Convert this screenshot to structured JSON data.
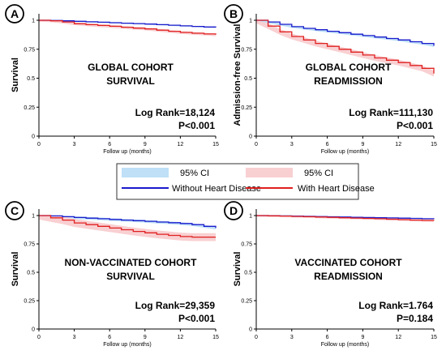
{
  "legend": {
    "ci_label_left": "95% CI",
    "ci_label_right": "95% CI",
    "line_label_without": "Without Heart Disease",
    "line_label_with": "With Heart Disease"
  },
  "colors": {
    "without_line": "#1a1acc",
    "without_ci": "#bfe0f7",
    "with_line": "#e02020",
    "with_ci": "#f9d0d2"
  },
  "chart_data": [
    {
      "type": "line",
      "panel_letter": "A",
      "annotation": [
        "GLOBAL COHORT",
        "SURVIVAL"
      ],
      "stat": [
        "Log Rank=18,124",
        "P<0.001"
      ],
      "ylabel": "Survival",
      "xlabel": "Follow up (months)",
      "xlim": [
        0,
        15
      ],
      "ylim": [
        0,
        1
      ],
      "x_ticks": [
        0,
        3,
        6,
        9,
        12,
        15
      ],
      "y_ticks": [
        0,
        0.25,
        0.5,
        0.75,
        1
      ],
      "y_tick_labels": [
        "0",
        "0.25",
        "0.5",
        "0.75",
        "1"
      ],
      "series": [
        {
          "name": "Without Heart Disease",
          "x": [
            0,
            1,
            2,
            3,
            4,
            5,
            6,
            7,
            8,
            9,
            10,
            11,
            12,
            13,
            14,
            15
          ],
          "y": [
            1.0,
            0.998,
            0.995,
            0.991,
            0.987,
            0.983,
            0.979,
            0.975,
            0.971,
            0.967,
            0.962,
            0.957,
            0.952,
            0.947,
            0.942,
            0.938
          ],
          "ci": 0.005
        },
        {
          "name": "With Heart Disease",
          "x": [
            0,
            1,
            2,
            3,
            4,
            5,
            6,
            7,
            8,
            9,
            10,
            11,
            12,
            13,
            14,
            15
          ],
          "y": [
            1.0,
            0.995,
            0.985,
            0.97,
            0.962,
            0.955,
            0.948,
            0.94,
            0.932,
            0.925,
            0.915,
            0.905,
            0.895,
            0.888,
            0.882,
            0.875
          ],
          "ci": 0.012
        }
      ]
    },
    {
      "type": "line",
      "panel_letter": "B",
      "annotation": [
        "GLOBAL COHORT",
        "READMISSION"
      ],
      "stat": [
        "Log Rank=111,130",
        "P<0.001"
      ],
      "ylabel": "Admission-free Survival",
      "xlabel": "Follow up (months)",
      "xlim": [
        0,
        15
      ],
      "ylim": [
        0,
        1
      ],
      "x_ticks": [
        0,
        3,
        6,
        9,
        12,
        15
      ],
      "y_ticks": [
        0,
        0.25,
        0.5,
        0.75,
        1
      ],
      "y_tick_labels": [
        "0",
        "0.25",
        "0.5",
        "0.75",
        "1"
      ],
      "series": [
        {
          "name": "Without Heart Disease",
          "x": [
            0,
            1,
            2,
            3,
            4,
            5,
            6,
            7,
            8,
            9,
            10,
            11,
            12,
            13,
            14,
            15
          ],
          "y": [
            1.0,
            0.985,
            0.965,
            0.945,
            0.93,
            0.918,
            0.905,
            0.893,
            0.88,
            0.868,
            0.855,
            0.843,
            0.83,
            0.815,
            0.8,
            0.78
          ],
          "ci": 0.01
        },
        {
          "name": "With Heart Disease",
          "x": [
            0,
            1,
            2,
            3,
            4,
            5,
            6,
            7,
            8,
            9,
            10,
            11,
            12,
            13,
            14,
            15
          ],
          "y": [
            1.0,
            0.95,
            0.9,
            0.86,
            0.83,
            0.8,
            0.775,
            0.75,
            0.725,
            0.7,
            0.675,
            0.655,
            0.635,
            0.61,
            0.585,
            0.54
          ],
          "ci": 0.025
        }
      ]
    },
    {
      "type": "line",
      "panel_letter": "C",
      "annotation": [
        "NON-VACCINATED COHORT",
        "SURVIVAL"
      ],
      "stat": [
        "Log Rank=29,359",
        "P<0.001"
      ],
      "ylabel": "Survival",
      "xlabel": "Follow up (months)",
      "xlim": [
        0,
        15
      ],
      "ylim": [
        0,
        1
      ],
      "x_ticks": [
        0,
        3,
        6,
        9,
        12,
        15
      ],
      "y_ticks": [
        0,
        0.25,
        0.5,
        0.75,
        1
      ],
      "y_tick_labels": [
        "0",
        "0.25",
        "0.5",
        "0.75",
        "1"
      ],
      "series": [
        {
          "name": "Without Heart Disease",
          "x": [
            0,
            1,
            2,
            3,
            4,
            5,
            6,
            7,
            8,
            9,
            10,
            11,
            12,
            13,
            14,
            15
          ],
          "y": [
            1.0,
            0.997,
            0.99,
            0.983,
            0.977,
            0.972,
            0.966,
            0.96,
            0.955,
            0.949,
            0.943,
            0.937,
            0.93,
            0.92,
            0.905,
            0.89
          ],
          "ci": 0.012
        },
        {
          "name": "With Heart Disease",
          "x": [
            0,
            1,
            2,
            3,
            4,
            5,
            6,
            7,
            8,
            9,
            10,
            11,
            12,
            13,
            14,
            15
          ],
          "y": [
            1.0,
            0.98,
            0.96,
            0.935,
            0.92,
            0.905,
            0.89,
            0.875,
            0.86,
            0.848,
            0.835,
            0.825,
            0.815,
            0.81,
            0.81,
            0.81
          ],
          "ci": 0.035
        }
      ]
    },
    {
      "type": "line",
      "panel_letter": "D",
      "annotation": [
        "VACCINATED COHORT",
        "READMISSION"
      ],
      "stat": [
        "Log Rank=1.764",
        "P=0.184"
      ],
      "ylabel": "Survival",
      "xlabel": "Follow up (months)",
      "xlim": [
        0,
        15
      ],
      "ylim": [
        0,
        1
      ],
      "x_ticks": [
        0,
        3,
        6,
        9,
        12,
        15
      ],
      "y_ticks": [
        0,
        0.25,
        0.5,
        0.75,
        1
      ],
      "y_tick_labels": [
        "0",
        "0.25",
        "0.5",
        "0.75",
        "1"
      ],
      "series": [
        {
          "name": "Without Heart Disease",
          "x": [
            0,
            1,
            2,
            3,
            4,
            5,
            6,
            7,
            8,
            9,
            10,
            11,
            12,
            13,
            14,
            15
          ],
          "y": [
            1.0,
            0.999,
            0.997,
            0.995,
            0.993,
            0.991,
            0.989,
            0.987,
            0.985,
            0.983,
            0.981,
            0.979,
            0.977,
            0.975,
            0.972,
            0.97
          ],
          "ci": 0.004
        },
        {
          "name": "With Heart Disease",
          "x": [
            0,
            1,
            2,
            3,
            4,
            5,
            6,
            7,
            8,
            9,
            10,
            11,
            12,
            13,
            14,
            15
          ],
          "y": [
            1.0,
            0.998,
            0.996,
            0.993,
            0.99,
            0.987,
            0.984,
            0.981,
            0.978,
            0.975,
            0.972,
            0.968,
            0.964,
            0.96,
            0.957,
            0.955
          ],
          "ci": 0.01
        }
      ]
    }
  ]
}
